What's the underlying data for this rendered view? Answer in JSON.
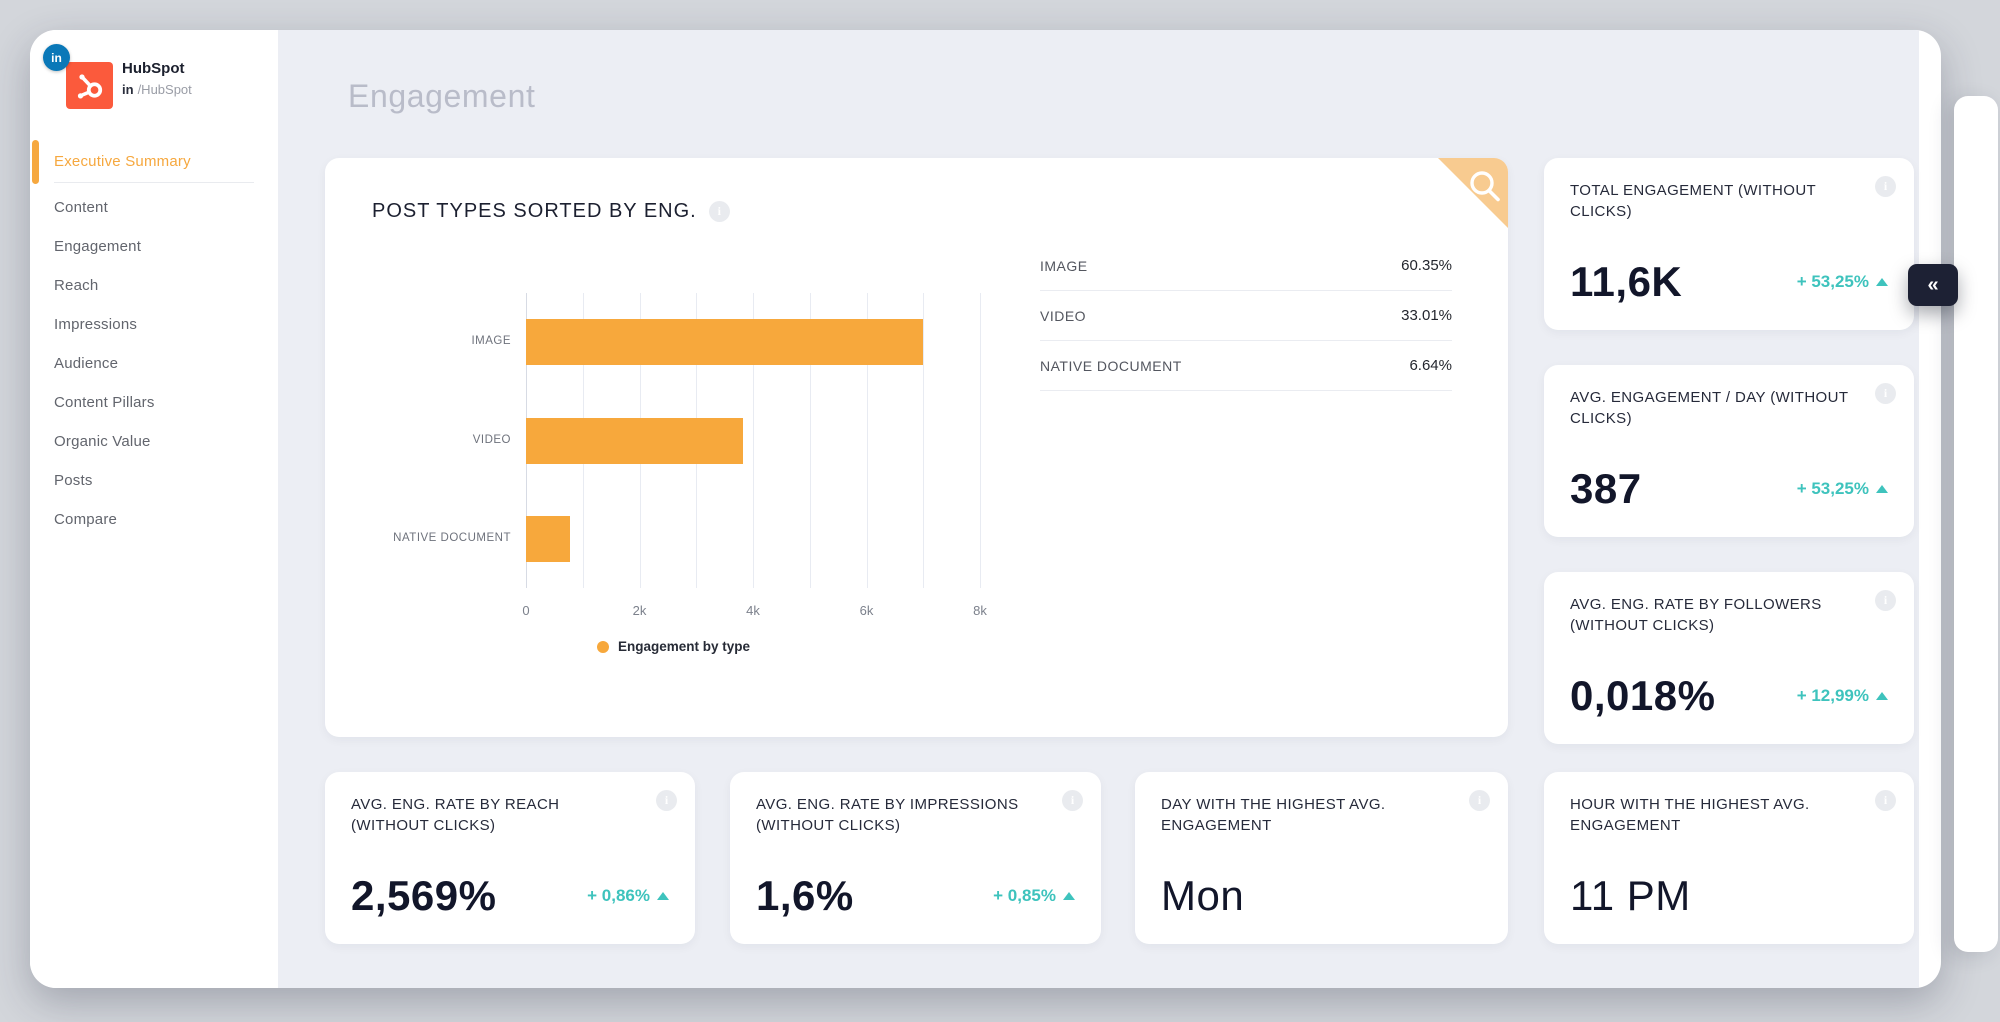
{
  "colors": {
    "accent_orange": "#F7A83C",
    "corner_badge_orange": "#F8CB90",
    "positive_teal": "#3EC3BD",
    "navy": "#1D2134",
    "hubspot_orange": "#FB5A3C",
    "linkedin_blue": "#0A78B8"
  },
  "sidebar": {
    "brand": {
      "badge": "in",
      "name": "HubSpot",
      "handle_bold": "in",
      "handle": "/HubSpot"
    },
    "items": [
      {
        "label": "Executive Summary",
        "active": true
      },
      {
        "label": "Content",
        "active": false
      },
      {
        "label": "Engagement",
        "active": false
      },
      {
        "label": "Reach",
        "active": false
      },
      {
        "label": "Impressions",
        "active": false
      },
      {
        "label": "Audience",
        "active": false
      },
      {
        "label": "Content Pillars",
        "active": false
      },
      {
        "label": "Organic Value",
        "active": false
      },
      {
        "label": "Posts",
        "active": false
      },
      {
        "label": "Compare",
        "active": false
      }
    ]
  },
  "header": {
    "title": "Engagement"
  },
  "chart_card": {
    "title": "POST TYPES SORTED BY ENG.",
    "breakdown": [
      {
        "label": "IMAGE",
        "value": "60.35%"
      },
      {
        "label": "VIDEO",
        "value": "33.01%"
      },
      {
        "label": "NATIVE DOCUMENT",
        "value": "6.64%"
      }
    ]
  },
  "chart_data": {
    "type": "bar",
    "orientation": "horizontal",
    "title": "POST TYPES SORTED BY ENG.",
    "categories": [
      "IMAGE",
      "VIDEO",
      "NATIVE DOCUMENT"
    ],
    "values": [
      7000,
      3830,
      770
    ],
    "share_percent": [
      60.35,
      33.01,
      6.64
    ],
    "xlim": [
      0,
      8000
    ],
    "gridline_step": 1000,
    "grid": true,
    "x_ticks": [
      {
        "label": "0",
        "value": 0
      },
      {
        "label": "2k",
        "value": 2000
      },
      {
        "label": "4k",
        "value": 4000
      },
      {
        "label": "6k",
        "value": 6000
      },
      {
        "label": "8k",
        "value": 8000
      }
    ],
    "legend": "Engagement by type",
    "legend_position": "bottom",
    "bar_color": "#F7A83C"
  },
  "kpis": {
    "right_column": [
      {
        "label": "TOTAL ENGAGEMENT (WITHOUT CLICKS)",
        "value": "11,6K",
        "delta": "+ 53,25%",
        "delta_dir": "up"
      },
      {
        "label": "AVG. ENGAGEMENT / DAY (WITHOUT CLICKS)",
        "value": "387",
        "delta": "+ 53,25%",
        "delta_dir": "up"
      },
      {
        "label": "AVG. ENG. RATE BY FOLLOWERS (WITHOUT CLICKS)",
        "value": "0,018%",
        "delta": "+ 12,99%",
        "delta_dir": "up"
      }
    ],
    "bottom_row": [
      {
        "label": "AVG. ENG. RATE BY REACH (WITHOUT CLICKS)",
        "value": "2,569%",
        "delta": "+ 0,86%",
        "delta_dir": "up"
      },
      {
        "label": "AVG. ENG. RATE BY IMPRESSIONS (WITHOUT CLICKS)",
        "value": "1,6%",
        "delta": "+ 0,85%",
        "delta_dir": "up"
      },
      {
        "label": "DAY WITH THE HIGHEST AVG. ENGAGEMENT",
        "value": "Mon"
      },
      {
        "label": "HOUR WITH THE HIGHEST AVG. ENGAGEMENT",
        "value": "11 PM"
      }
    ]
  },
  "controls": {
    "collapse_label": "«"
  }
}
